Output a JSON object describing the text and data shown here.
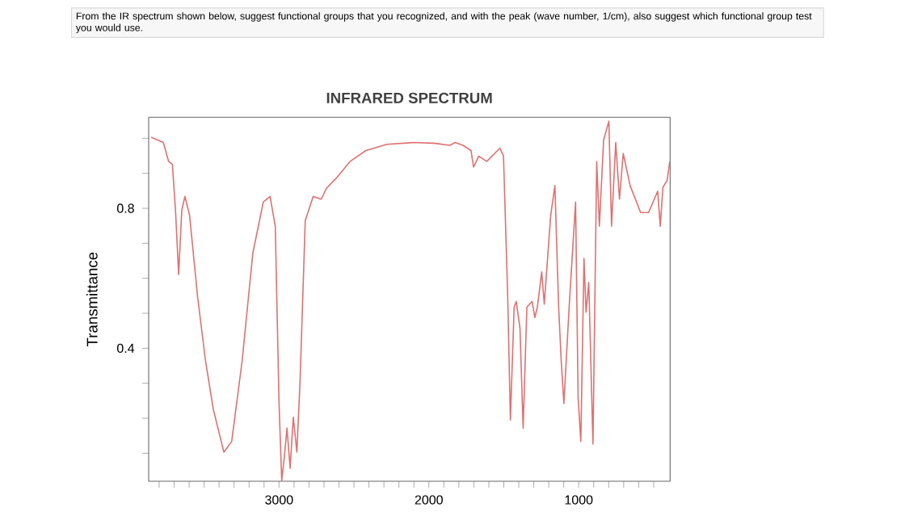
{
  "chart_data": {
    "type": "line",
    "title": "INFRARED SPECTRUM",
    "ylabel": "Transmittance",
    "annotations": [
      "From the IR spectrum shown below, suggest functional groups that you recognized, and with the peak (wave number, 1/cm), also suggest which functional group test you would use."
    ],
    "x": [
      3853,
      3772,
      3737,
      3712,
      3691,
      3670,
      3649,
      3628,
      3597,
      3544,
      3491,
      3439,
      3368,
      3316,
      3246,
      3175,
      3105,
      3060,
      3025,
      3000,
      2982,
      2965,
      2947,
      2926,
      2905,
      2881,
      2860,
      2825,
      2772,
      2719,
      2684,
      2614,
      2526,
      2421,
      2281,
      2105,
      1965,
      1860,
      1825,
      1772,
      1719,
      1702,
      1667,
      1614,
      1561,
      1526,
      1502,
      1474,
      1456,
      1431,
      1417,
      1392,
      1371,
      1346,
      1311,
      1293,
      1276,
      1247,
      1230,
      1187,
      1159,
      1134,
      1117,
      1099,
      1064,
      1021,
      1004,
      986,
      965,
      951,
      933,
      905,
      880,
      862,
      834,
      799,
      781,
      753,
      728,
      703,
      657,
      587,
      534,
      473,
      456,
      438,
      410,
      392
    ],
    "series": [
      {
        "color": "#e07070",
        "values": [
          1.003,
          0.988,
          0.934,
          0.926,
          0.795,
          0.611,
          0.795,
          0.834,
          0.78,
          0.549,
          0.365,
          0.226,
          0.103,
          0.134,
          0.365,
          0.672,
          0.818,
          0.834,
          0.749,
          0.242,
          0.022,
          0.088,
          0.172,
          0.057,
          0.203,
          0.103,
          0.303,
          0.765,
          0.834,
          0.826,
          0.857,
          0.888,
          0.934,
          0.965,
          0.983,
          0.988,
          0.986,
          0.98,
          0.988,
          0.98,
          0.965,
          0.918,
          0.949,
          0.934,
          0.957,
          0.972,
          0.949,
          0.549,
          0.195,
          0.518,
          0.534,
          0.457,
          0.172,
          0.518,
          0.534,
          0.488,
          0.518,
          0.618,
          0.526,
          0.78,
          0.865,
          0.518,
          0.365,
          0.242,
          0.518,
          0.818,
          0.258,
          0.134,
          0.657,
          0.503,
          0.588,
          0.126,
          0.934,
          0.749,
          0.995,
          1.049,
          0.749,
          0.988,
          0.826,
          0.957,
          0.865,
          0.788,
          0.788,
          0.849,
          0.749,
          0.86,
          0.88,
          0.934
        ]
      }
    ],
    "xlim": [
      3870,
      390
    ],
    "ylim": [
      0.02,
      1.06
    ],
    "xticks": [
      {
        "value": 3800,
        "label": null
      },
      {
        "value": 3700,
        "label": null
      },
      {
        "value": 3600,
        "label": null
      },
      {
        "value": 3500,
        "label": null
      },
      {
        "value": 3400,
        "label": null
      },
      {
        "value": 3300,
        "label": null
      },
      {
        "value": 3200,
        "label": null
      },
      {
        "value": 3100,
        "label": null
      },
      3000,
      {
        "value": 2900,
        "label": null
      },
      {
        "value": 2800,
        "label": null
      },
      {
        "value": 2700,
        "label": null
      },
      {
        "value": 2600,
        "label": null
      },
      {
        "value": 2500,
        "label": null
      },
      {
        "value": 2400,
        "label": null
      },
      {
        "value": 2300,
        "label": null
      },
      {
        "value": 2200,
        "label": null
      },
      {
        "value": 2100,
        "label": null
      },
      2000,
      {
        "value": 1900,
        "label": null
      },
      {
        "value": 1800,
        "label": null
      },
      {
        "value": 1700,
        "label": null
      },
      {
        "value": 1600,
        "label": null
      },
      {
        "value": 1500,
        "label": null
      },
      {
        "value": 1400,
        "label": null
      },
      {
        "value": 1300,
        "label": null
      },
      {
        "value": 1200,
        "label": null
      },
      {
        "value": 1100,
        "label": null
      },
      1000,
      {
        "value": 900,
        "label": null
      },
      {
        "value": 800,
        "label": null
      },
      {
        "value": 700,
        "label": null
      },
      {
        "value": 600,
        "label": null
      },
      {
        "value": 500,
        "label": null
      }
    ],
    "yticks": [
      {
        "value": 0.1,
        "label": null
      },
      {
        "value": 0.2,
        "label": null
      },
      {
        "value": 0.3,
        "label": null
      },
      0.4,
      {
        "value": 0.5,
        "label": null
      },
      {
        "value": 0.6,
        "label": null
      },
      {
        "value": 0.7,
        "label": null
      },
      0.8,
      {
        "value": 0.9,
        "label": null
      },
      {
        "value": 1.0,
        "label": null
      }
    ],
    "grid": false,
    "marker": "none",
    "line_style": "solid"
  }
}
